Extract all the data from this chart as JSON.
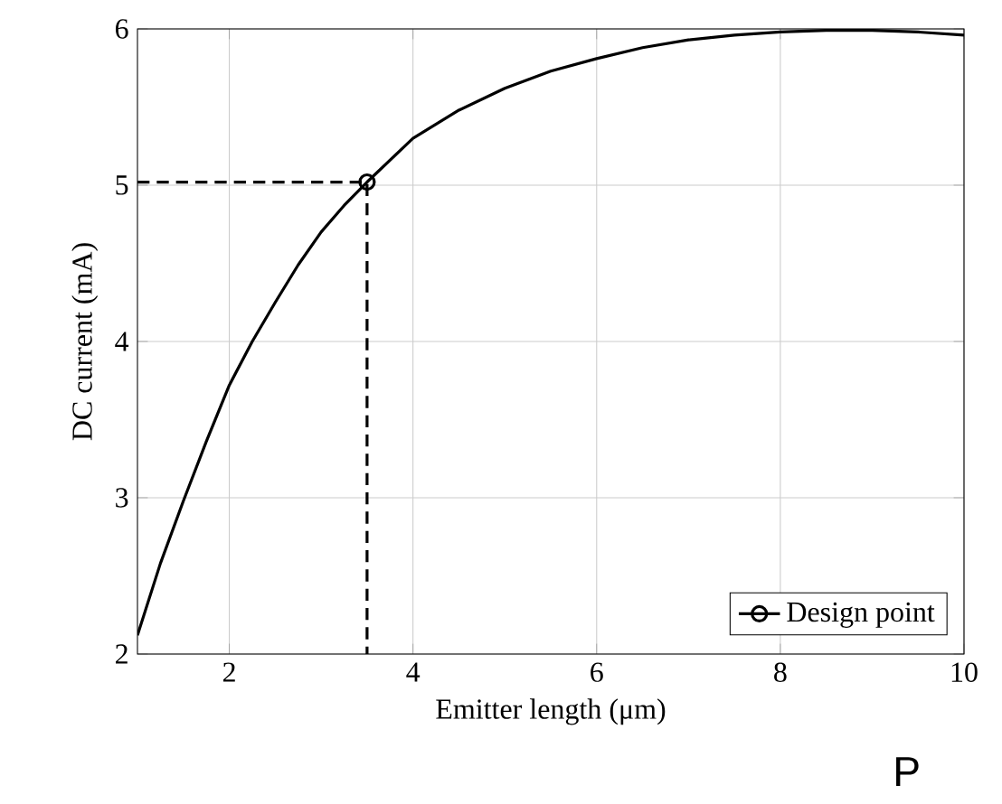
{
  "chart_data": {
    "type": "line",
    "xlabel": "Emitter length (μm)",
    "ylabel": "DC current (mA)",
    "xlim": [
      1,
      10
    ],
    "ylim": [
      2,
      6
    ],
    "xticks": [
      2,
      4,
      6,
      8,
      10
    ],
    "yticks": [
      2,
      3,
      4,
      5,
      6
    ],
    "grid": true,
    "legend": "bottom right",
    "series": [
      {
        "color": "#000000",
        "marker": "none",
        "line_style": "solid",
        "x": [
          1,
          1.25,
          1.5,
          1.75,
          2,
          2.25,
          2.5,
          2.75,
          3,
          3.25,
          3.5,
          4,
          4.5,
          5,
          5.5,
          6,
          6.5,
          7,
          7.5,
          8,
          8.5,
          9,
          9.5,
          10
        ],
        "values": [
          2.12,
          2.58,
          2.98,
          3.36,
          3.72,
          4.0,
          4.25,
          4.49,
          4.7,
          4.87,
          5.02,
          5.3,
          5.48,
          5.62,
          5.73,
          5.81,
          5.88,
          5.93,
          5.96,
          5.98,
          5.99,
          5.99,
          5.98,
          5.96
        ]
      },
      {
        "color": "#000000",
        "marker": "none",
        "line_style": "dashed",
        "x": [
          1,
          3.5,
          3.5
        ],
        "values": [
          5.02,
          5.02,
          2
        ]
      },
      {
        "name": "Design point",
        "color": "#000000",
        "marker": "circle",
        "line_style": "solid",
        "x": [
          3.5
        ],
        "values": [
          5.02
        ]
      }
    ],
    "annotations": [
      "P"
    ]
  }
}
